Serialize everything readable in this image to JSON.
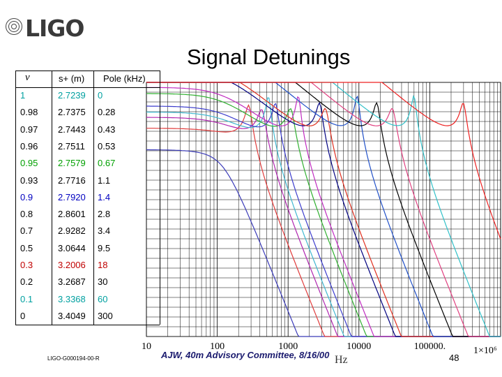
{
  "logo": {
    "text": "LIGO"
  },
  "title": "Signal Detunings",
  "table": {
    "headers": [
      "ν",
      "s+ (m)",
      "Pole (kHz)"
    ],
    "rows": [
      [
        "1",
        "2.7239",
        "0",
        "#00a0a0"
      ],
      [
        "0.98",
        "2.7375",
        "0.28",
        "#000000"
      ],
      [
        "0.97",
        "2.7443",
        "0.43",
        "#000000"
      ],
      [
        "0.96",
        "2.7511",
        "0.53",
        "#000000"
      ],
      [
        "0.95",
        "2.7579",
        "0.67",
        "#00a000"
      ],
      [
        "0.93",
        "2.7716",
        "1.1",
        "#000000"
      ],
      [
        "0.9",
        "2.7920",
        "1.4",
        "#0000c0"
      ],
      [
        "0.8",
        "2.8601",
        "2.8",
        "#000000"
      ],
      [
        "0.7",
        "2.9282",
        "3.4",
        "#000000"
      ],
      [
        "0.5",
        "3.0644",
        "9.5",
        "#000000"
      ],
      [
        "0.3",
        "3.2006",
        "18",
        "#c00000"
      ],
      [
        "0.2",
        "3.2687",
        "30",
        "#000000"
      ],
      [
        "0.1",
        "3.3368",
        "60",
        "#00a0a0"
      ],
      [
        "0",
        "3.4049",
        "300",
        "#000000"
      ]
    ]
  },
  "footer": {
    "doc_id": "LIGO-G000194-00-R",
    "citation": "AJW, 40m Advisory Committee, 8/16/00",
    "page_number": "48"
  },
  "chart_data": {
    "type": "line",
    "title": "Signal Detunings",
    "x_scale": "log",
    "xlim": [
      10,
      1000000
    ],
    "x_tick_labels": [
      "10",
      "100",
      "1000",
      "10000",
      "100000.",
      "1×10⁶"
    ],
    "xlabel": "Hz",
    "ylabel": "",
    "grid": true,
    "series": [
      {
        "pole_khz": 0,
        "color": "#3a3ab8"
      },
      {
        "pole_khz": 0.28,
        "color": "#e03c3c"
      },
      {
        "pole_khz": 0.43,
        "color": "#b026b0"
      },
      {
        "pole_khz": 0.53,
        "color": "#40b8d0"
      },
      {
        "pole_khz": 0.67,
        "color": "#3c3ccc"
      },
      {
        "pole_khz": 1.1,
        "color": "#30b030"
      },
      {
        "pole_khz": 1.4,
        "color": "#c02cc0"
      },
      {
        "pole_khz": 2.8,
        "color": "#000080"
      },
      {
        "pole_khz": 3.4,
        "color": "#e03020"
      },
      {
        "pole_khz": 9.5,
        "color": "#2050c8"
      },
      {
        "pole_khz": 18,
        "color": "#000000"
      },
      {
        "pole_khz": 30,
        "color": "#e04080"
      },
      {
        "pole_khz": 60,
        "color": "#30c0c8"
      },
      {
        "pole_khz": 300,
        "color": "#ee2020"
      }
    ]
  }
}
